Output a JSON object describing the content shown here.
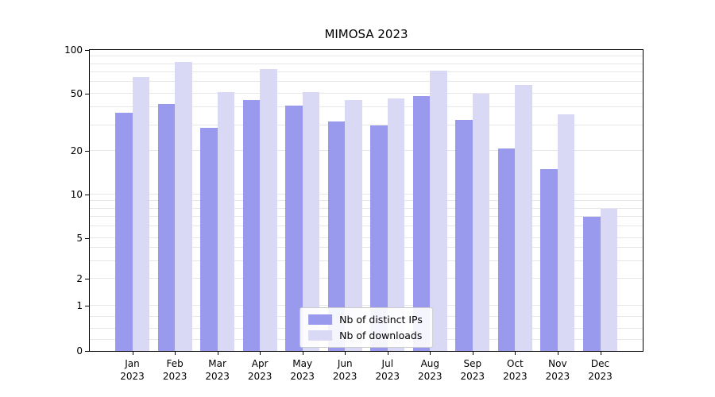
{
  "title": "MIMOSA 2023",
  "year_label": "2023",
  "chart_data": {
    "type": "bar",
    "title": "MIMOSA 2023",
    "categories": [
      "Jan",
      "Feb",
      "Mar",
      "Apr",
      "May",
      "Jun",
      "Jul",
      "Aug",
      "Sep",
      "Oct",
      "Nov",
      "Dec"
    ],
    "year_label": "2023",
    "series": [
      {
        "name": "Nb of distinct IPs",
        "color": "#9999ee",
        "values": [
          37,
          42,
          29,
          45,
          41,
          32,
          30,
          48,
          33,
          21,
          15,
          7
        ]
      },
      {
        "name": "Nb of downloads",
        "color": "#d9d9f6",
        "values": [
          65,
          83,
          51,
          74,
          51,
          45,
          46,
          72,
          50,
          57,
          36,
          8
        ]
      }
    ],
    "yscale": "symlog",
    "ylim": [
      0,
      100
    ],
    "y_ticks": [
      100,
      50,
      20,
      10,
      5,
      2,
      1,
      0
    ],
    "grid": true,
    "gridline_color": "#e6e6e6",
    "legend_position": "lower center"
  }
}
